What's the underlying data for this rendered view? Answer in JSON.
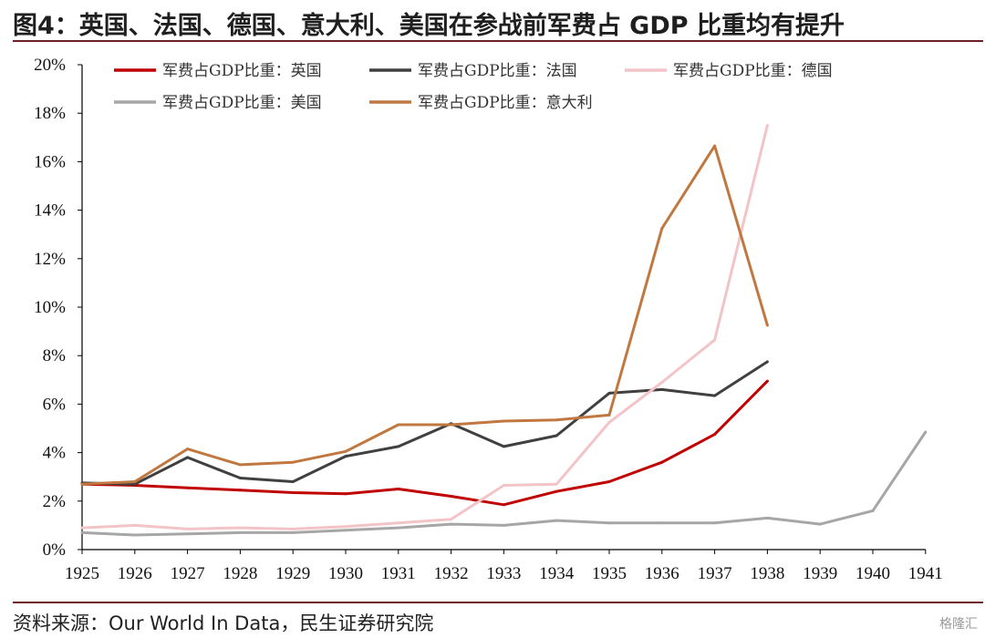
{
  "title": "图4：英国、法国、德国、意大利、美国在参战前军费占 GDP 比重均有提升",
  "source": "资料来源：Our World In Data，民生证券研究院",
  "logo_text": "格隆汇",
  "chart_data": {
    "type": "line",
    "x": [
      "1925",
      "1926",
      "1927",
      "1928",
      "1929",
      "1930",
      "1931",
      "1932",
      "1933",
      "1934",
      "1935",
      "1936",
      "1937",
      "1938",
      "1939",
      "1940",
      "1941"
    ],
    "ylim": [
      0,
      20
    ],
    "yticks": [
      "0%",
      "2%",
      "4%",
      "6%",
      "8%",
      "10%",
      "12%",
      "14%",
      "16%",
      "18%",
      "20%"
    ],
    "grid": false,
    "legend_position": "top",
    "series": [
      {
        "name": "军费占GDP比重：英国",
        "color": "#c00000",
        "values": [
          2.7,
          2.65,
          2.55,
          2.45,
          2.35,
          2.3,
          2.5,
          2.2,
          1.85,
          2.4,
          2.8,
          3.6,
          4.75,
          6.95,
          null,
          null,
          null
        ]
      },
      {
        "name": "军费占GDP比重：法国",
        "color": "#404040",
        "values": [
          2.75,
          2.7,
          3.8,
          2.95,
          2.8,
          3.85,
          4.25,
          5.2,
          4.25,
          4.7,
          6.45,
          6.6,
          6.35,
          7.75,
          null,
          null,
          null
        ]
      },
      {
        "name": "军费占GDP比重：德国",
        "color": "#f2c4c8",
        "values": [
          0.9,
          1.0,
          0.85,
          0.9,
          0.85,
          0.95,
          1.1,
          1.25,
          2.65,
          2.7,
          5.25,
          6.9,
          8.65,
          17.5,
          null,
          null,
          null
        ]
      },
      {
        "name": "军费占GDP比重：美国",
        "color": "#a6a6a6",
        "values": [
          0.7,
          0.6,
          0.65,
          0.7,
          0.7,
          0.8,
          0.9,
          1.05,
          1.0,
          1.2,
          1.1,
          1.1,
          1.1,
          1.3,
          1.05,
          1.6,
          4.85
        ]
      },
      {
        "name": "军费占GDP比重：意大利",
        "color": "#c07840",
        "values": [
          2.7,
          2.8,
          4.15,
          3.5,
          3.6,
          4.05,
          5.15,
          5.15,
          5.3,
          5.35,
          5.55,
          13.25,
          16.65,
          9.25,
          null,
          null,
          null
        ]
      }
    ]
  }
}
